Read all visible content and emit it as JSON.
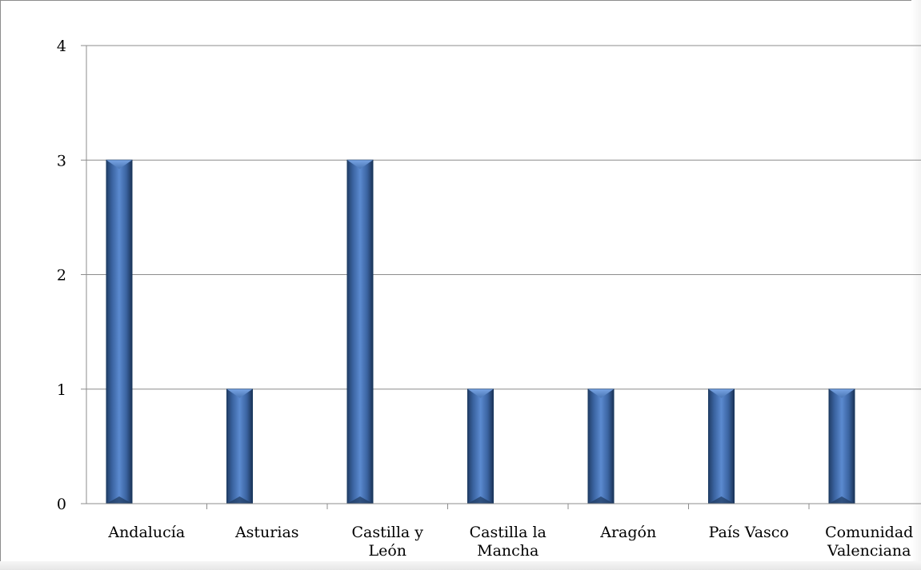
{
  "chart_data": {
    "type": "bar",
    "title": "",
    "xlabel": "",
    "ylabel": "",
    "categories": [
      [
        "Andalucía"
      ],
      [
        "Asturias"
      ],
      [
        "Castilla y",
        "León"
      ],
      [
        "Castilla la",
        "Mancha"
      ],
      [
        "Aragón"
      ],
      [
        "País Vasco"
      ],
      [
        "Comunidad",
        "Valenciana"
      ]
    ],
    "values": [
      3,
      1,
      3,
      1,
      1,
      1,
      1
    ],
    "ylim": [
      0,
      4
    ],
    "yticks": [
      "0",
      "1",
      "2",
      "3",
      "4"
    ],
    "grid": true,
    "legend": "none",
    "bar_color": "#4a76b4",
    "bar_edge_color": "#17375e",
    "grid_color": "#8c8c8c"
  }
}
